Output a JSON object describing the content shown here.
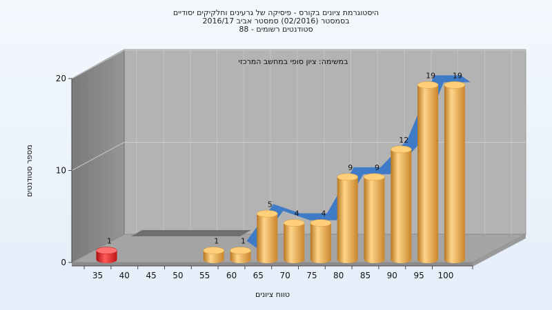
{
  "chart_data": {
    "type": "bar",
    "title_lines": [
      "היסטוגרמת ציונים בקורס - פיסיקה של גרעינים וחלקיקים יסודיים",
      "בסמסטר  (02/2016)  סמסטר אביב 2016/17",
      "סטודנטים רשומים - 88"
    ],
    "annotation": "במשימה: ציון סופי במחשב המרכזי",
    "xlabel": "טווח ציונים",
    "ylabel": "מספר סטודנטים",
    "categories": [
      "35",
      "40",
      "45",
      "50",
      "55",
      "60",
      "65",
      "70",
      "75",
      "80",
      "85",
      "90",
      "95",
      "100"
    ],
    "values": [
      1,
      0,
      0,
      0,
      1,
      1,
      5,
      4,
      4,
      9,
      9,
      12,
      19,
      19
    ],
    "data_labels": [
      "1",
      "",
      "",
      "",
      "1",
      "1",
      "5",
      "4",
      "4",
      "9",
      "9",
      "12",
      "19",
      "19"
    ],
    "highlight_colors": [
      "#e02020",
      "",
      "",
      "",
      "",
      "",
      "",
      "",
      "",
      "",
      "",
      "",
      "",
      ""
    ],
    "bar_color": "#e8a23c",
    "ribbon_color": "#3a78c8",
    "ylim": [
      0,
      20
    ],
    "yticks": [
      "0",
      "10",
      "20"
    ],
    "grid": true
  }
}
